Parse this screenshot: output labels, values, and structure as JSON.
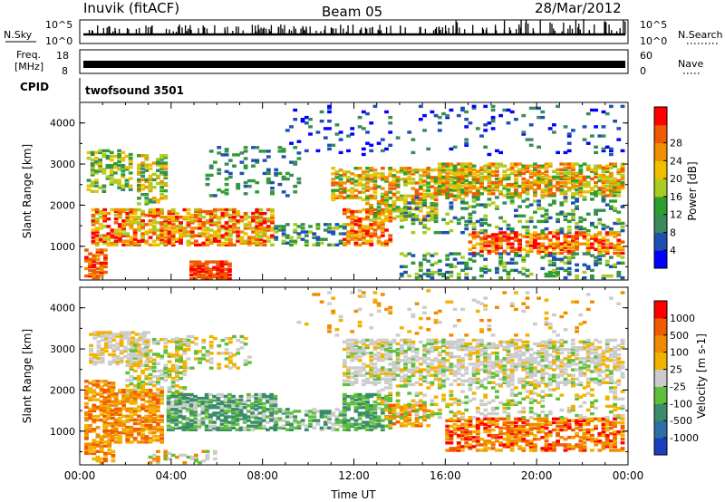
{
  "header": {
    "station": "Inuvik (fitACF)",
    "beam": "Beam 05",
    "date": "28/Mar/2012"
  },
  "strip_nsky": {
    "left_label": "N.Sky",
    "right_label": "N.Search",
    "left_ticks": [
      "10^5",
      "10^0"
    ],
    "right_ticks": [
      "10^5",
      "10^0"
    ]
  },
  "strip_freq": {
    "left_label_1": "Freq.",
    "left_label_2": "[MHz]",
    "right_label": "Nave",
    "left_ticks": [
      "18",
      "8"
    ],
    "right_ticks": [
      "60",
      "0"
    ]
  },
  "cpid": {
    "label": "CPID",
    "value": "twofsound 3501"
  },
  "chart_data": [
    {
      "type": "heatmap",
      "name": "power",
      "ylabel": "Slant Range [km]",
      "xlabel": "Time UT",
      "x_tick_labels": [
        "00:00",
        "04:00",
        "08:00",
        "12:00",
        "16:00",
        "20:00",
        "00:00"
      ],
      "y_tick_labels": [
        "1000",
        "2000",
        "3000",
        "4000"
      ],
      "xlim": [
        0,
        24
      ],
      "ylim": [
        180,
        4500
      ],
      "colorbar": {
        "label": "Power [dB]",
        "tick_labels": [
          "4",
          "8",
          "12",
          "16",
          "20",
          "24",
          "28"
        ],
        "colors": [
          "#0000ff",
          "#1f4fb0",
          "#3a8a5a",
          "#2e9f2e",
          "#aacc22",
          "#f0c000",
          "#f09000",
          "#f05a00",
          "#ff0000"
        ]
      }
    },
    {
      "type": "heatmap",
      "name": "velocity",
      "ylabel": "Slant Range [km]",
      "xlabel": "Time UT",
      "x_tick_labels": [
        "00:00",
        "04:00",
        "08:00",
        "12:00",
        "16:00",
        "20:00",
        "00:00"
      ],
      "y_tick_labels": [
        "1000",
        "2000",
        "3000",
        "4000"
      ],
      "xlim": [
        0,
        24
      ],
      "ylim": [
        180,
        4500
      ],
      "colorbar": {
        "label": "Velocity [m s-1]",
        "tick_labels": [
          "1000",
          "500",
          "100",
          "25",
          "-25",
          "-100",
          "-500",
          "-1000"
        ],
        "colors": [
          "#1a3fbf",
          "#2f6fa8",
          "#3a8c6a",
          "#5fbf3a",
          "#cccccc",
          "#f2b200",
          "#f28a00",
          "#f25a00",
          "#ff0000"
        ]
      }
    }
  ],
  "x_axis": {
    "title": "Time UT"
  }
}
